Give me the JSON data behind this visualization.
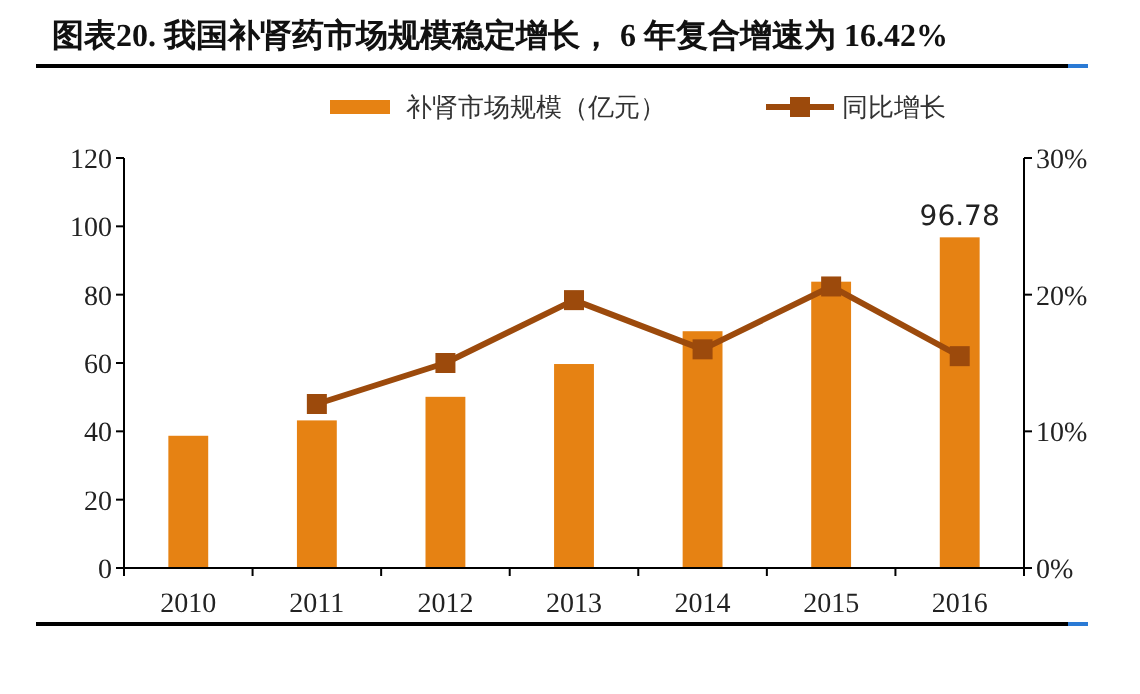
{
  "chart_data": {
    "type": "bar",
    "title": "图表20.  我国补肾药市场规模稳定增长， 6 年复合增速为 16.42%",
    "categories": [
      "2010",
      "2011",
      "2012",
      "2013",
      "2014",
      "2015",
      "2016"
    ],
    "series": [
      {
        "name": "补肾市场规模（亿元）",
        "color": "#e68213",
        "values": [
          38.7,
          43.2,
          50.1,
          59.7,
          69.3,
          83.8,
          96.78
        ],
        "value_labels": [
          null,
          null,
          null,
          null,
          null,
          null,
          "96.78"
        ]
      },
      {
        "name": "同比增长",
        "type": "line",
        "axis": "y2",
        "color": "#9c4a0c",
        "values": [
          null,
          12.0,
          15.0,
          19.6,
          16.0,
          20.6,
          15.5
        ]
      }
    ],
    "ylim": [
      0,
      120
    ],
    "yticks": [
      0,
      20,
      40,
      60,
      80,
      100,
      120
    ],
    "y2lim": [
      0,
      30
    ],
    "y2ticks": [
      {
        "value": 0,
        "label": "0%"
      },
      {
        "value": 10,
        "label": "10%"
      },
      {
        "value": 20,
        "label": "20%"
      },
      {
        "value": 30,
        "label": "30%"
      }
    ],
    "legend": "top",
    "marker": "square",
    "grid": false
  }
}
